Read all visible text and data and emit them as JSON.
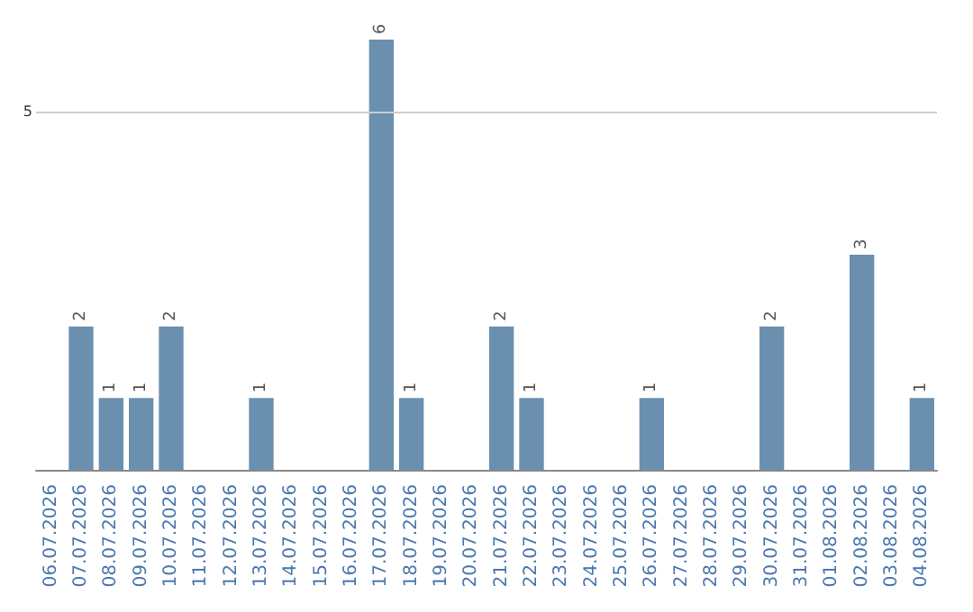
{
  "chart_data": {
    "type": "bar",
    "categories": [
      "06.07.2026",
      "07.07.2026",
      "08.07.2026",
      "09.07.2026",
      "10.07.2026",
      "11.07.2026",
      "12.07.2026",
      "13.07.2026",
      "14.07.2026",
      "15.07.2026",
      "16.07.2026",
      "17.07.2026",
      "18.07.2026",
      "19.07.2026",
      "20.07.2026",
      "21.07.2026",
      "22.07.2026",
      "23.07.2026",
      "24.07.2026",
      "25.07.2026",
      "26.07.2026",
      "27.07.2026",
      "28.07.2026",
      "29.07.2026",
      "30.07.2026",
      "31.07.2026",
      "01.08.2026",
      "02.08.2026",
      "03.08.2026",
      "04.08.2026"
    ],
    "values": [
      0,
      2,
      1,
      1,
      2,
      0,
      0,
      1,
      0,
      0,
      0,
      6,
      1,
      0,
      0,
      2,
      1,
      0,
      0,
      0,
      1,
      0,
      0,
      0,
      2,
      0,
      0,
      3,
      0,
      1
    ],
    "value_labels": [
      null,
      "2",
      "1",
      "1",
      "2",
      null,
      null,
      "1",
      null,
      null,
      null,
      "6",
      "1",
      null,
      null,
      "2",
      "1",
      null,
      null,
      null,
      "1",
      null,
      null,
      null,
      "2",
      null,
      null,
      "3",
      null,
      "1"
    ],
    "color": "#6b8fae",
    "ref_lines": [
      {
        "axis": "y",
        "value": 5,
        "label": "5",
        "color": "#cccccc"
      }
    ]
  }
}
